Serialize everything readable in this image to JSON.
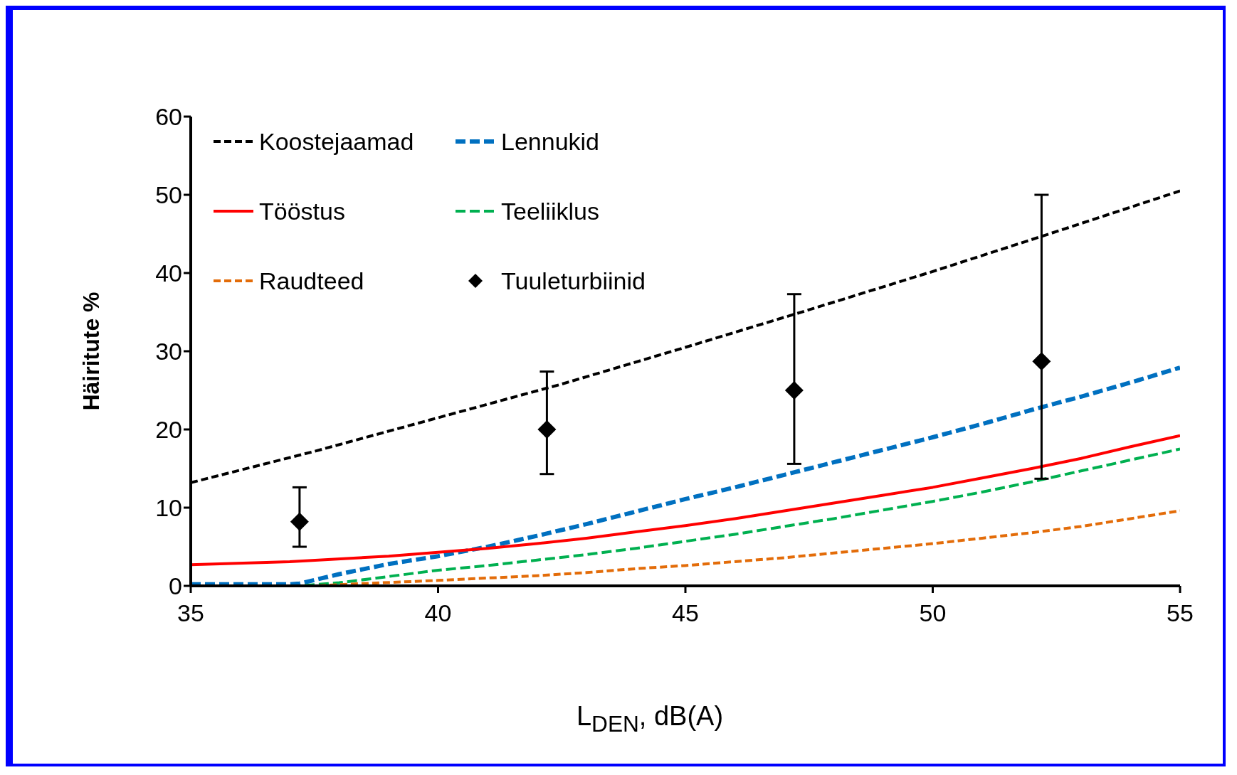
{
  "chart_data": {
    "type": "line",
    "xlabel": "L$_{DEN}$, dB(A)",
    "ylabel": "Häiritute %",
    "xlim": [
      35,
      55
    ],
    "xticks": [
      35,
      40,
      45,
      50,
      55
    ],
    "ylim": [
      0,
      60
    ],
    "yticks": [
      0,
      10,
      20,
      30,
      40,
      50,
      60
    ],
    "grid": false,
    "legend": "top left",
    "marker": "none",
    "series": [
      {
        "name": "Koostejaamad",
        "color": "#000000",
        "line_style": "dashed",
        "x": [
          35,
          37.5,
          40,
          42.5,
          45,
          47.5,
          50,
          52.5,
          55
        ],
        "values": [
          13.2,
          17.2,
          21.5,
          25.8,
          30.5,
          35.3,
          40.2,
          45.3,
          50.5
        ]
      },
      {
        "name": "Lennukid",
        "color": "#0070c0",
        "line_style": "dashed",
        "x": [
          35,
          37,
          37.2,
          38,
          39,
          40,
          41,
          42,
          43,
          44,
          45,
          46,
          47,
          48,
          49,
          50,
          51,
          52,
          53,
          54,
          55
        ],
        "values": [
          0.2,
          0.2,
          0.3,
          1.5,
          2.8,
          3.8,
          5.0,
          6.4,
          7.9,
          9.5,
          11.1,
          12.6,
          14.2,
          15.8,
          17.4,
          19.0,
          20.7,
          22.5,
          24.2,
          26.0,
          27.9
        ]
      },
      {
        "name": "Tööstus",
        "color": "#ff0000",
        "line_style": "solid",
        "x": [
          35,
          37,
          39,
          40,
          41,
          42,
          43,
          44,
          45,
          46,
          47,
          48,
          49,
          50,
          51,
          52,
          53,
          54,
          55
        ],
        "values": [
          2.7,
          3.1,
          3.8,
          4.3,
          4.8,
          5.4,
          6.1,
          6.9,
          7.7,
          8.6,
          9.6,
          10.6,
          11.6,
          12.6,
          13.8,
          15.0,
          16.3,
          17.8,
          19.2
        ]
      },
      {
        "name": "Teeliiklus",
        "color": "#00b050",
        "line_style": "dashed",
        "x": [
          35,
          37.2,
          38,
          39,
          40,
          41,
          42,
          43,
          44,
          45,
          46,
          47,
          48,
          49,
          50,
          51,
          52,
          53,
          54,
          55
        ],
        "values": [
          0,
          0,
          0.4,
          1.2,
          2.0,
          2.6,
          3.3,
          4.0,
          4.8,
          5.7,
          6.6,
          7.6,
          8.6,
          9.7,
          10.8,
          12.0,
          13.3,
          14.7,
          16.1,
          17.5
        ]
      },
      {
        "name": "Raudteed",
        "color": "#e36c09",
        "line_style": "dashed",
        "x": [
          35,
          37.5,
          38.5,
          40,
          41,
          42,
          43,
          44,
          45,
          46,
          47,
          48,
          49,
          50,
          51,
          52,
          53,
          54,
          55
        ],
        "values": [
          0,
          0,
          0.3,
          0.7,
          1.0,
          1.3,
          1.7,
          2.2,
          2.6,
          3.1,
          3.6,
          4.2,
          4.8,
          5.4,
          6.1,
          6.8,
          7.6,
          8.6,
          9.6
        ]
      },
      {
        "name": "Tuuleturbiinid",
        "type": "scatter",
        "marker": "diamond",
        "color": "#000000",
        "x": [
          37.2,
          42.2,
          47.2,
          52.2
        ],
        "values": [
          8.2,
          20,
          25,
          28.7
        ],
        "errors": [
          [
            5.0,
            12.6
          ],
          [
            14.3,
            27.4
          ],
          [
            15.6,
            37.3
          ],
          [
            13.7,
            50
          ]
        ]
      }
    ]
  }
}
